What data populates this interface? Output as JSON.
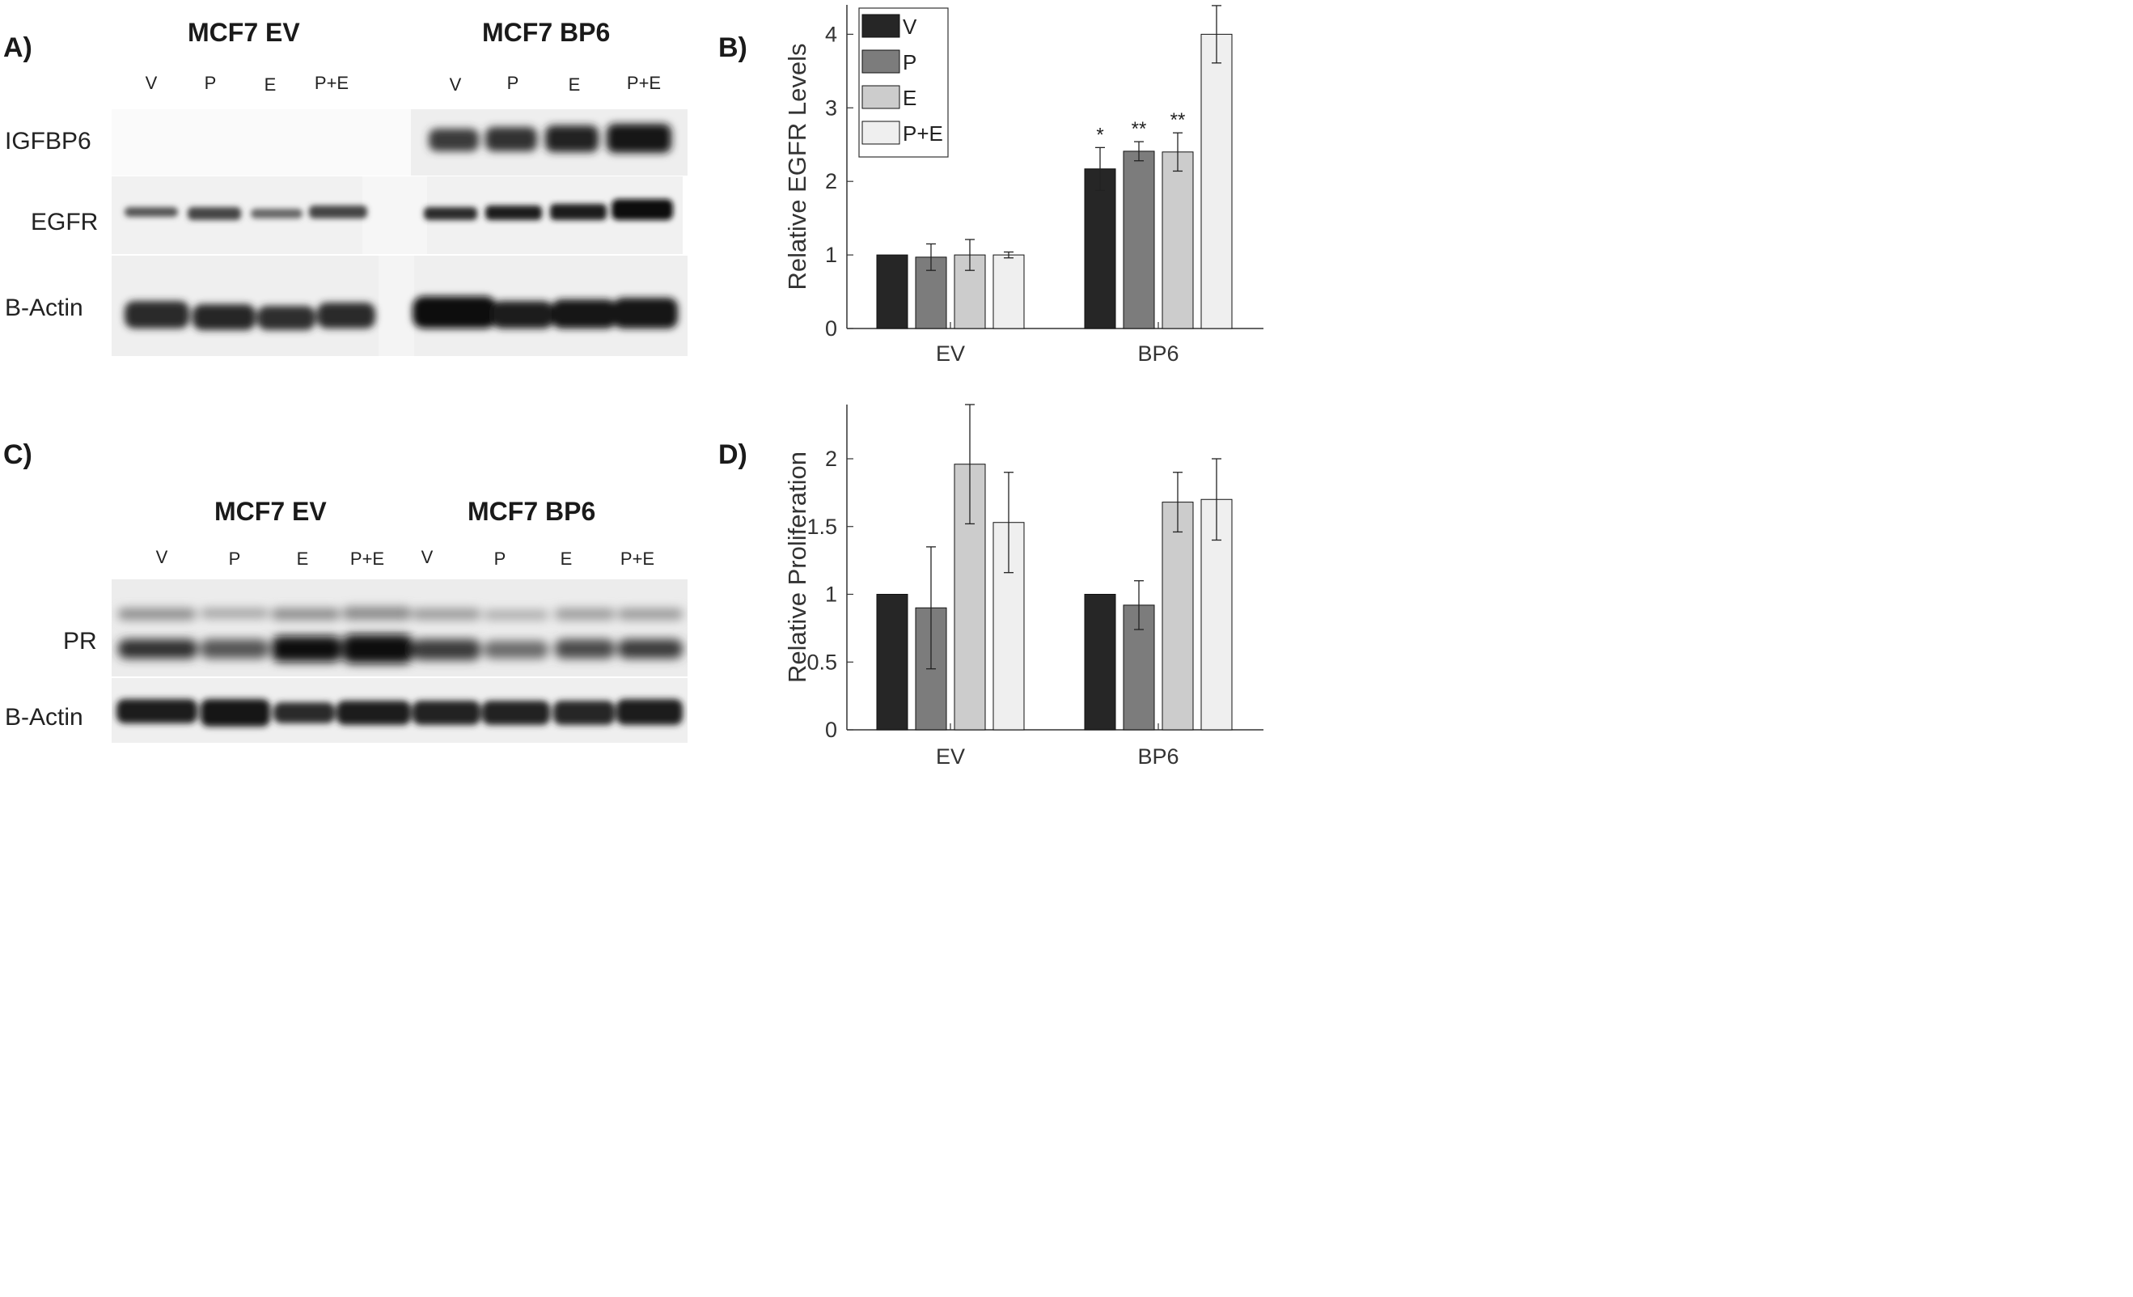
{
  "panels": {
    "a": "A)",
    "b": "B)",
    "c": "C)",
    "d": "D)"
  },
  "blot_a": {
    "groups": [
      "MCF7 EV",
      "MCF7 BP6"
    ],
    "lanes": [
      "V",
      "P",
      "E",
      "P+E",
      "V",
      "P",
      "E",
      "P+E"
    ],
    "rows": [
      "IGFBP6",
      "EGFR",
      "B-Actin"
    ]
  },
  "blot_c": {
    "groups": [
      "MCF7 EV",
      "MCF7 BP6"
    ],
    "lanes": [
      "V",
      "P",
      "E",
      "P+E",
      "V",
      "P",
      "E",
      "P+E"
    ],
    "rows": [
      "PR",
      "B-Actin"
    ]
  },
  "chart_data": [
    {
      "type": "bar",
      "title": "",
      "ylabel": "Relative EGFR Levels",
      "xlabel": "",
      "categories": [
        "EV",
        "BP6"
      ],
      "ylim": [
        0,
        4.4
      ],
      "yticks": [
        0,
        1,
        2,
        3,
        4
      ],
      "series": [
        {
          "name": "V",
          "color": "#262626",
          "values": [
            1.0,
            2.17
          ],
          "errors": [
            0,
            0.29
          ]
        },
        {
          "name": "P",
          "color": "#7c7c7c",
          "values": [
            0.97,
            2.41
          ],
          "errors": [
            0.18,
            0.13
          ]
        },
        {
          "name": "E",
          "color": "#cccccc",
          "values": [
            1.0,
            2.4
          ],
          "errors": [
            0.21,
            0.26
          ]
        },
        {
          "name": "P+E",
          "color": "#efefef",
          "values": [
            1.0,
            4.0
          ],
          "errors": [
            0.04,
            0.39
          ]
        }
      ],
      "annotations": [
        {
          "category": "BP6",
          "series": "V",
          "text": "*"
        },
        {
          "category": "BP6",
          "series": "P",
          "text": "**"
        },
        {
          "category": "BP6",
          "series": "E",
          "text": "**"
        },
        {
          "category": "BP6",
          "series": "P+E",
          "text": "***"
        }
      ],
      "legend": "top-left"
    },
    {
      "type": "bar",
      "title": "",
      "ylabel": "Relative Proliferation",
      "xlabel": "",
      "categories": [
        "EV",
        "BP6"
      ],
      "ylim": [
        0,
        2.4
      ],
      "yticks": [
        0,
        0.5,
        1,
        1.5,
        2
      ],
      "ytick_labels": [
        "0",
        "0.5",
        "1",
        "1.5",
        "2"
      ],
      "series": [
        {
          "name": "V",
          "color": "#262626",
          "values": [
            1.0,
            1.0
          ],
          "errors": [
            0,
            0
          ]
        },
        {
          "name": "P",
          "color": "#7c7c7c",
          "values": [
            0.9,
            0.92
          ],
          "errors": [
            0.45,
            0.18
          ]
        },
        {
          "name": "E",
          "color": "#cccccc",
          "values": [
            1.96,
            1.68
          ],
          "errors": [
            0.44,
            0.22
          ]
        },
        {
          "name": "P+E",
          "color": "#efefef",
          "values": [
            1.53,
            1.7
          ],
          "errors": [
            0.37,
            0.3
          ]
        }
      ]
    }
  ]
}
